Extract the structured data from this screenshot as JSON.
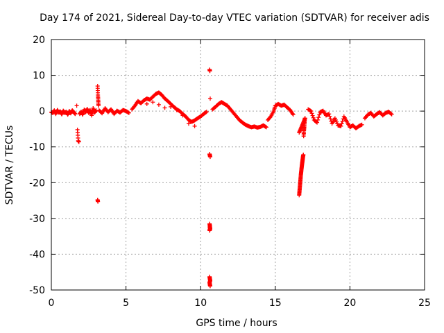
{
  "chart_data": {
    "type": "scatter",
    "title": "Day 174 of 2021, Sidereal Day-to-day VTEC variation (SDTVAR) for receiver adis",
    "xlabel": "GPS time / hours",
    "ylabel": "SDTVAR / TECUs",
    "xlim": [
      0,
      25
    ],
    "ylim": [
      -50,
      20
    ],
    "xticks": [
      0,
      5,
      10,
      15,
      20,
      25
    ],
    "yticks": [
      -50,
      -40,
      -30,
      -20,
      -10,
      0,
      10,
      20
    ],
    "xtick_labels": [
      "0",
      "5",
      "10",
      "15",
      "20",
      "25"
    ],
    "ytick_labels": [
      "-50",
      "-40",
      "-30",
      "-20",
      "-10",
      "0",
      "10",
      "20"
    ],
    "grid": true,
    "marker": "+",
    "series": [
      {
        "name": "SDTVAR",
        "color": "#ff0000",
        "segments": [
          {
            "x": [
              0.0,
              0.1,
              0.2,
              0.3,
              0.4,
              0.5,
              0.6,
              0.7,
              0.8,
              0.9,
              1.0,
              1.1,
              1.2,
              1.3,
              1.4,
              1.5,
              1.6
            ],
            "y": [
              -0.3,
              -0.5,
              0.2,
              -0.8,
              0.3,
              -0.4,
              -0.1,
              -0.9,
              0.1,
              -0.5,
              -0.2,
              -1.0,
              0.0,
              -0.6,
              0.2,
              -0.3,
              -0.8
            ]
          },
          {
            "x": [
              1.7,
              1.75,
              1.8,
              1.85
            ],
            "y": [
              1.5,
              -5.2,
              -8.3,
              -8.6
            ]
          },
          {
            "x": [
              1.9,
              2.0,
              2.1,
              2.2,
              2.3,
              2.4,
              2.5,
              2.6,
              2.7,
              2.8,
              2.9,
              3.0
            ],
            "y": [
              -0.8,
              -0.2,
              -1.0,
              0.4,
              -0.3,
              0.6,
              -0.5,
              0.3,
              -1.2,
              0.8,
              -0.4,
              0.2
            ]
          },
          {
            "x": [
              3.1,
              3.12,
              3.14,
              3.16,
              3.1,
              3.12
            ],
            "y": [
              7.0,
              4.5,
              3.0,
              1.5,
              -24.8,
              -25.3
            ]
          },
          {
            "x": [
              3.2,
              3.4,
              3.6,
              3.8,
              4.0,
              4.2,
              4.4,
              4.6,
              4.8,
              5.0,
              5.2
            ],
            "y": [
              0.2,
              -0.6,
              0.8,
              -0.3,
              0.5,
              -0.8,
              0.1,
              -0.4,
              0.3,
              0.0,
              -0.5
            ]
          },
          {
            "x": [
              5.4,
              5.6,
              5.8,
              6.0,
              6.2,
              6.4,
              6.6,
              6.8,
              7.0,
              7.2,
              7.4,
              7.6,
              7.8,
              8.0,
              8.2,
              8.4,
              8.6,
              8.8,
              9.0,
              9.2,
              9.4,
              9.6,
              9.8,
              10.0,
              10.2,
              10.4
            ],
            "y": [
              0.5,
              1.5,
              2.8,
              2.2,
              3.0,
              3.5,
              3.2,
              4.0,
              4.8,
              5.2,
              4.5,
              3.5,
              2.8,
              2.0,
              1.2,
              0.5,
              0.0,
              -0.8,
              -1.5,
              -2.5,
              -3.0,
              -2.6,
              -2.0,
              -1.5,
              -0.8,
              -0.2
            ]
          },
          {
            "x": [
              6.4,
              6.8,
              7.2,
              7.6,
              8.0,
              8.4,
              8.8,
              9.2,
              9.6
            ],
            "y": [
              2.0,
              2.5,
              1.8,
              0.9,
              1.2,
              0.3,
              -1.2,
              -3.5,
              -4.2
            ]
          },
          {
            "x": [
              10.6,
              10.62,
              10.64
            ],
            "y": [
              11.6,
              11.2,
              3.5
            ]
          },
          {
            "x": [
              10.6,
              10.62,
              10.64
            ],
            "y": [
              -12.0,
              -12.4,
              -12.8
            ]
          },
          {
            "x": [
              10.6,
              10.62,
              10.64,
              10.6,
              10.62
            ],
            "y": [
              -31.5,
              -32.2,
              -32.9,
              -33.4,
              -31.9
            ]
          },
          {
            "x": [
              10.6,
              10.62,
              10.64,
              10.6,
              10.62,
              10.64
            ],
            "y": [
              -46.3,
              -46.9,
              -47.4,
              -47.9,
              -48.5,
              -48.9
            ]
          },
          {
            "x": [
              10.8,
              11.0,
              11.2,
              11.4,
              11.6,
              11.8,
              12.0,
              12.2,
              12.4,
              12.6,
              12.8,
              13.0,
              13.2,
              13.4,
              13.6,
              13.8,
              14.0,
              14.2,
              14.4
            ],
            "y": [
              0.5,
              1.2,
              2.0,
              2.5,
              2.0,
              1.5,
              0.5,
              -0.5,
              -1.5,
              -2.5,
              -3.2,
              -3.8,
              -4.2,
              -4.5,
              -4.3,
              -4.6,
              -4.4,
              -4.0,
              -4.5
            ]
          },
          {
            "x": [
              14.5,
              14.7,
              14.9,
              15.0,
              15.2,
              15.4,
              15.6,
              15.8,
              16.0,
              16.2
            ],
            "y": [
              -2.5,
              -1.5,
              0.0,
              1.5,
              2.0,
              1.5,
              1.8,
              1.0,
              0.3,
              -1.0
            ]
          },
          {
            "x": [
              16.6,
              16.62,
              16.64,
              16.66,
              16.68,
              16.7,
              16.72,
              16.74,
              16.76,
              16.78,
              16.8,
              16.82,
              16.84,
              16.86,
              16.88,
              16.9,
              16.92,
              16.94,
              16.96,
              16.98
            ],
            "y": [
              -23.5,
              -22.5,
              -21.5,
              -20.5,
              -19.5,
              -18.5,
              -17.5,
              -16.8,
              -16.0,
              -15.3,
              -14.6,
              -14.0,
              -13.3,
              -12.6,
              -12.2,
              -7.0,
              -5.5,
              -4.5,
              -3.2,
              -2.0
            ]
          },
          {
            "x": [
              16.6,
              16.7,
              16.8,
              16.9,
              17.0
            ],
            "y": [
              -6.0,
              -5.0,
              -4.0,
              -3.0,
              -2.0
            ]
          },
          {
            "x": [
              17.2,
              17.4,
              17.6,
              17.8,
              18.0,
              18.2,
              18.4,
              18.6,
              18.8,
              19.0,
              19.2,
              19.4,
              19.6,
              19.8,
              20.0,
              20.2,
              20.4,
              20.6,
              20.8
            ],
            "y": [
              0.5,
              0.0,
              -2.5,
              -3.2,
              -0.3,
              0.1,
              -1.2,
              -0.8,
              -3.5,
              -2.0,
              -4.0,
              -4.2,
              -1.5,
              -3.0,
              -4.5,
              -4.0,
              -4.8,
              -4.2,
              -3.8
            ]
          },
          {
            "x": [
              21.0,
              21.2,
              21.4,
              21.6,
              21.8,
              22.0,
              22.2,
              22.4,
              22.6,
              22.8
            ],
            "y": [
              -2.0,
              -1.0,
              -0.5,
              -1.5,
              -0.8,
              -0.3,
              -1.2,
              -0.5,
              -0.2,
              -0.9
            ]
          }
        ]
      }
    ]
  }
}
